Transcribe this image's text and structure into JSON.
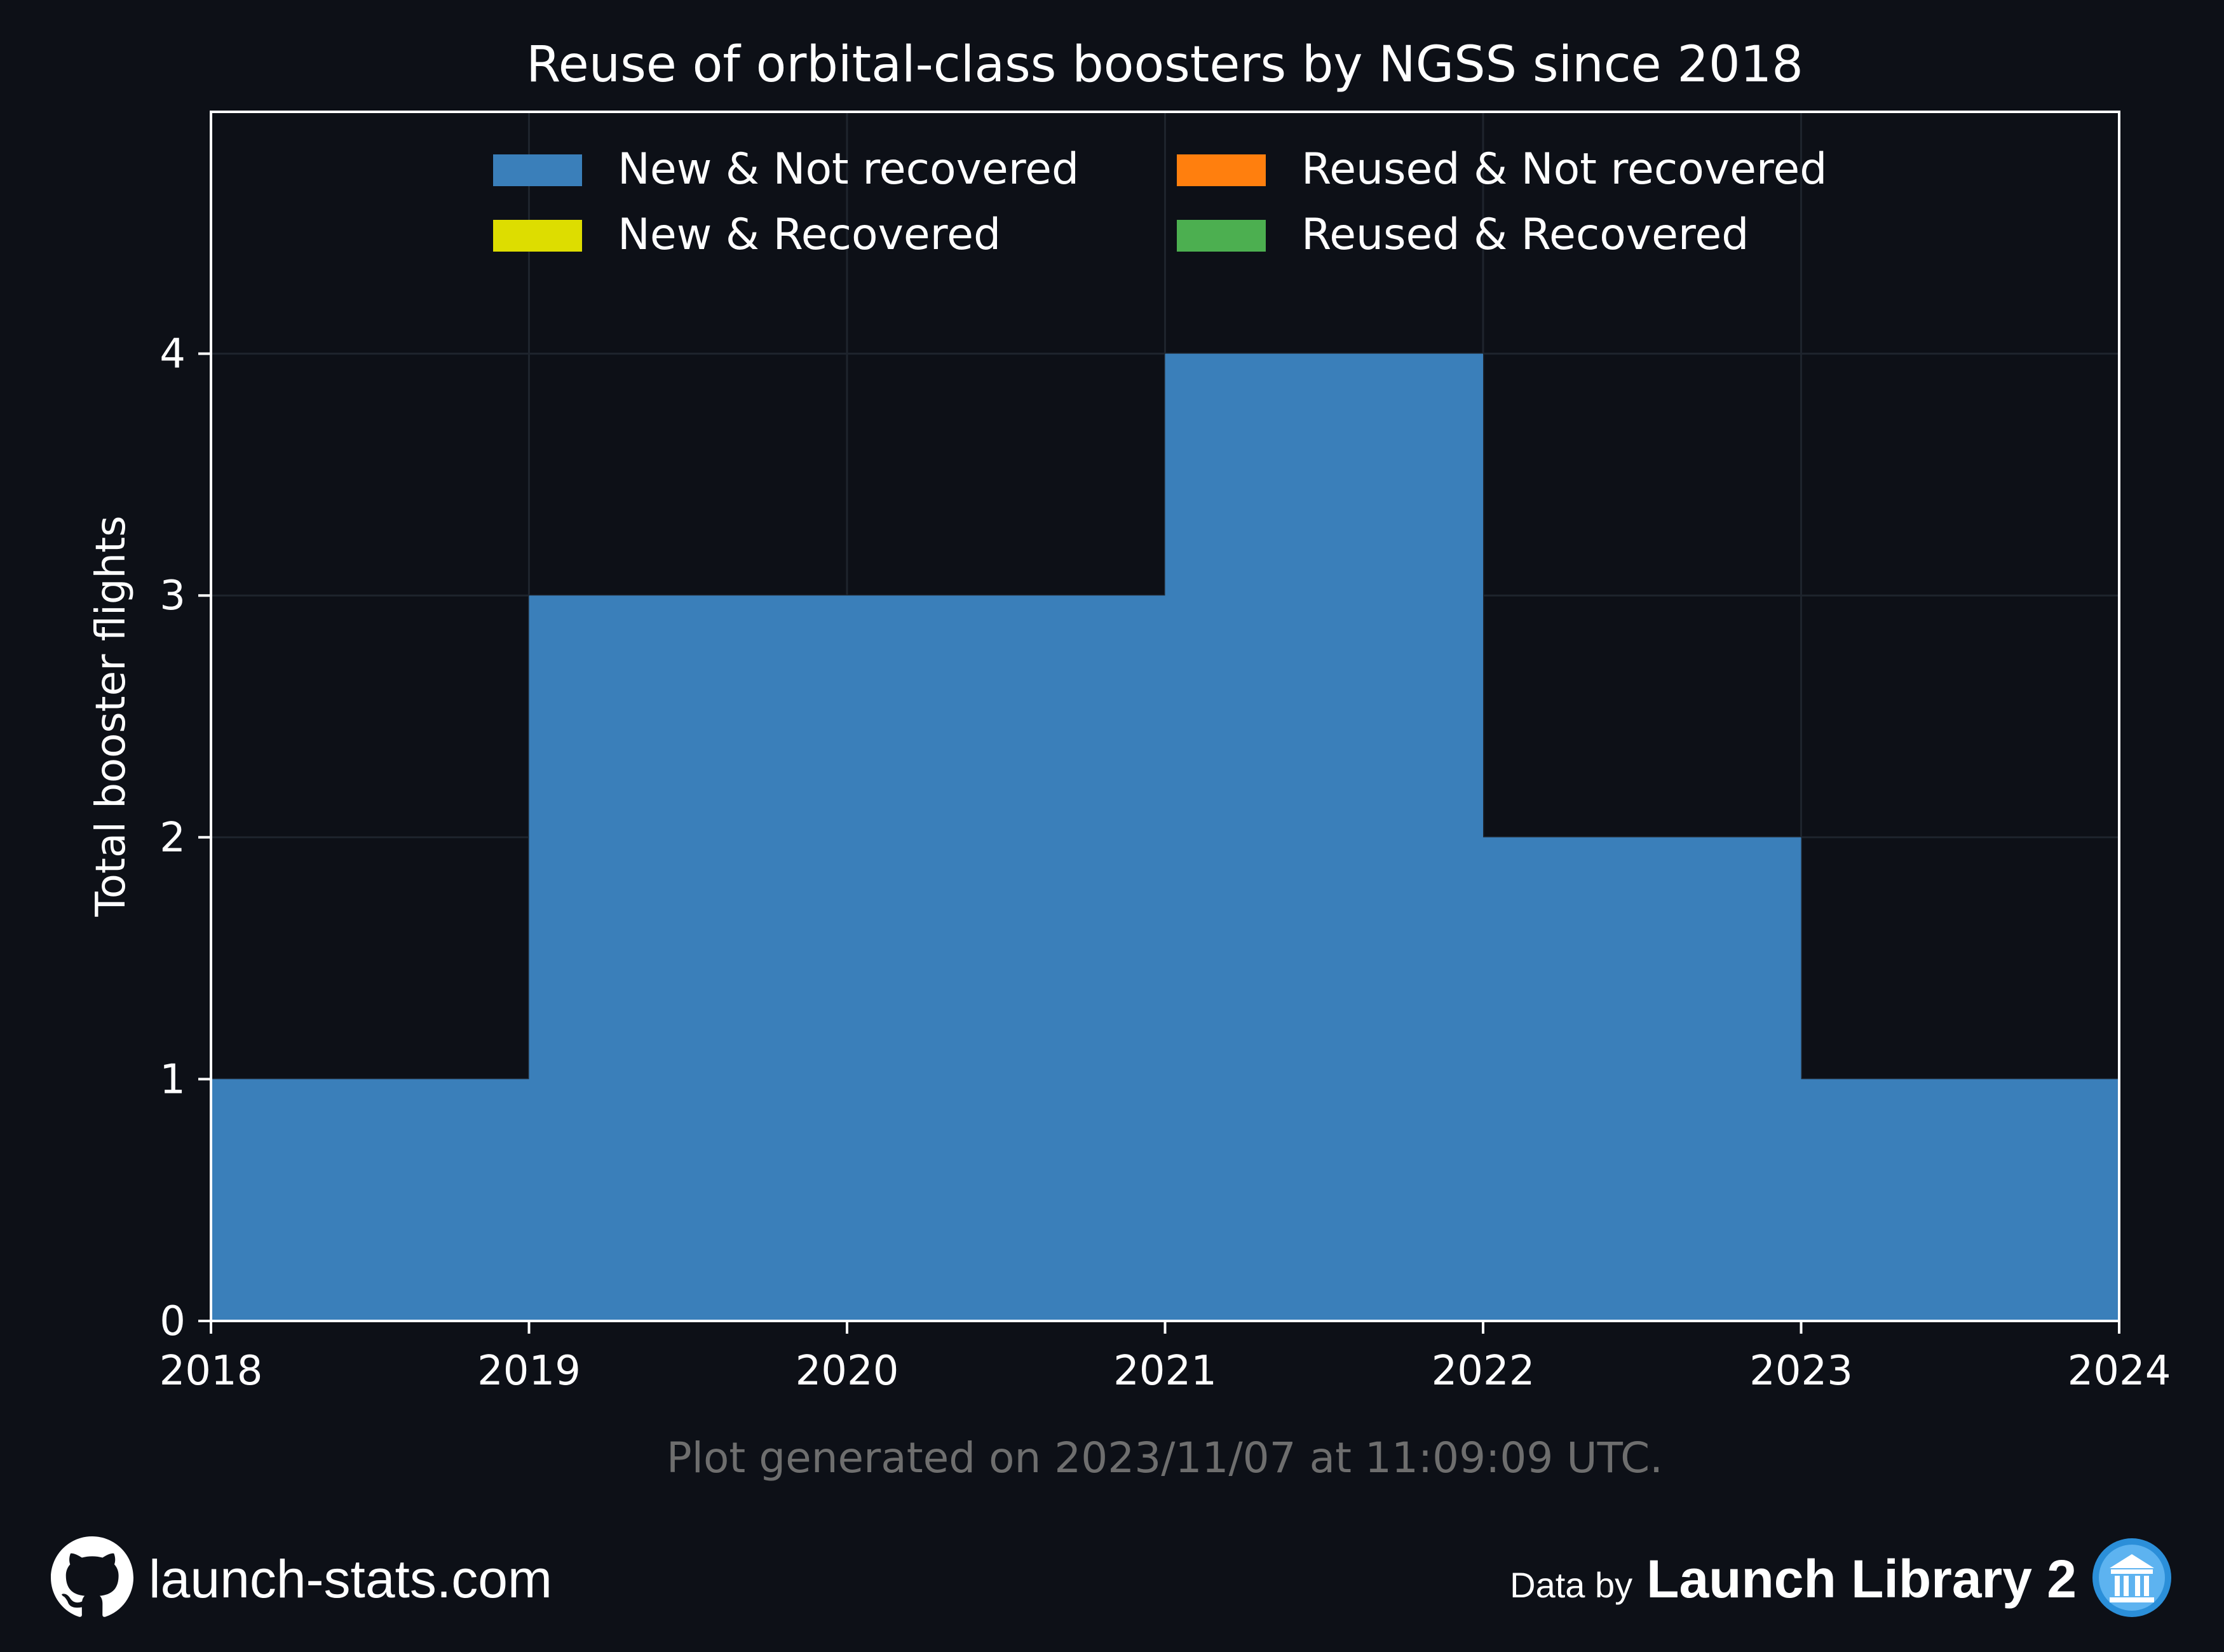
{
  "chart_data": {
    "type": "area",
    "step": "post",
    "title": "Reuse of orbital-class boosters by NGSS since 2018",
    "xlabel": "",
    "ylabel": "Total booster flights",
    "x": [
      2018,
      2019,
      2020,
      2021,
      2022,
      2023
    ],
    "xticks": [
      "2018",
      "2019",
      "2020",
      "2021",
      "2022",
      "2023",
      "2024"
    ],
    "xlim": [
      2018,
      2024
    ],
    "yticks": [
      "0",
      "1",
      "2",
      "3",
      "4"
    ],
    "ylim": [
      0,
      5
    ],
    "grid": true,
    "stacked": true,
    "legend_position": "top",
    "series": [
      {
        "name": "New & Not recovered",
        "color": "#3a7fba",
        "values": [
          1,
          3,
          3,
          4,
          2,
          1
        ]
      },
      {
        "name": "New & Recovered",
        "color": "#dddd00",
        "values": [
          0,
          0,
          0,
          0,
          0,
          0
        ]
      },
      {
        "name": "Reused & Not recovered",
        "color": "#ff7f0e",
        "values": [
          0,
          0,
          0,
          0,
          0,
          0
        ]
      },
      {
        "name": "Reused & Recovered",
        "color": "#4caf50",
        "values": [
          0,
          0,
          0,
          0,
          0,
          0
        ]
      }
    ]
  },
  "caption": "Plot generated on 2023/11/07 at 11:09:09 UTC.",
  "footer": {
    "site": "launch-stats.com",
    "site_icon": "github-icon",
    "data_by": "Data by",
    "brand": "Launch Library 2",
    "brand_icon": "library-icon"
  },
  "colors": {
    "background": "#0d1017",
    "axes": "#ffffff",
    "grid": "#1e242d",
    "caption": "#6e6e6e"
  }
}
